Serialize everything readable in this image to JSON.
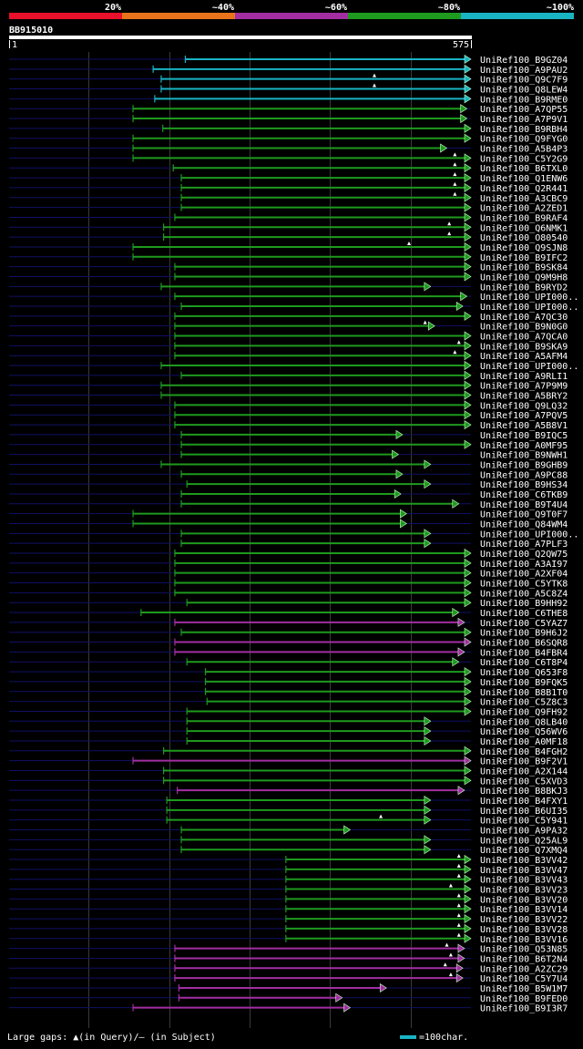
{
  "legend": {
    "labels": [
      "20%",
      "~40%",
      "~60%",
      "~80%",
      "~100%"
    ],
    "colors": [
      "#e8102a",
      "#e8731a",
      "#a22ea2",
      "#1e9a1e",
      "#19b4c4"
    ]
  },
  "query": {
    "id": "BB915010",
    "start": "1",
    "end": "575",
    "length": 575
  },
  "footer": {
    "gaps_text": "Large gaps: ▲(in Query)/– (in Subject)",
    "scale_text": "=100char."
  },
  "chart_data": {
    "type": "alignment-overview",
    "x_range": [
      1,
      575
    ],
    "hits": [
      {
        "label": "UniRef100_B9GZ04",
        "start": 220,
        "end": 575,
        "color": "cyan"
      },
      {
        "label": "UniRef100_A9PAU2",
        "start": 180,
        "end": 575,
        "color": "cyan"
      },
      {
        "label": "UniRef100_Q9C7F9",
        "start": 190,
        "end": 575,
        "color": "cyan",
        "ins": [
          455
        ]
      },
      {
        "label": "UniRef100_Q8LEW4",
        "start": 190,
        "end": 575,
        "color": "cyan",
        "ins": [
          455
        ]
      },
      {
        "label": "UniRef100_B9RME0",
        "start": 182,
        "end": 575,
        "color": "cyan"
      },
      {
        "label": "UniRef100_A7QP55",
        "start": 155,
        "end": 570,
        "color": "green"
      },
      {
        "label": "UniRef100_A7P9V1",
        "start": 155,
        "end": 570,
        "color": "green"
      },
      {
        "label": "UniRef100_B9RBH4",
        "start": 192,
        "end": 575,
        "color": "green"
      },
      {
        "label": "UniRef100_Q9FYG0",
        "start": 155,
        "end": 575,
        "color": "green"
      },
      {
        "label": "UniRef100_A5B4P3",
        "start": 155,
        "end": 545,
        "color": "green"
      },
      {
        "label": "UniRef100_C5Y2G9",
        "start": 155,
        "end": 575,
        "color": "green",
        "ins": [
          555
        ]
      },
      {
        "label": "UniRef100_B6TXL0",
        "start": 205,
        "end": 575,
        "color": "green",
        "ins": [
          555
        ]
      },
      {
        "label": "UniRef100_Q1ENW6",
        "start": 215,
        "end": 575,
        "color": "green",
        "ins": [
          555
        ]
      },
      {
        "label": "UniRef100_Q2R441",
        "start": 215,
        "end": 575,
        "color": "green",
        "ins": [
          555
        ]
      },
      {
        "label": "UniRef100_A3CBC9",
        "start": 215,
        "end": 575,
        "color": "green",
        "ins": [
          555
        ]
      },
      {
        "label": "UniRef100_A2ZED1",
        "start": 215,
        "end": 575,
        "color": "green"
      },
      {
        "label": "UniRef100_B9RAF4",
        "start": 207,
        "end": 575,
        "color": "green"
      },
      {
        "label": "UniRef100_Q6NMK1",
        "start": 193,
        "end": 575,
        "color": "green",
        "ins": [
          548
        ]
      },
      {
        "label": "UniRef100_O80540",
        "start": 193,
        "end": 575,
        "color": "green",
        "ins": [
          548
        ]
      },
      {
        "label": "UniRef100_Q9SJN8",
        "start": 155,
        "end": 575,
        "color": "green",
        "ins": [
          498
        ]
      },
      {
        "label": "UniRef100_B9IFC2",
        "start": 155,
        "end": 575,
        "color": "green"
      },
      {
        "label": "UniRef100_B9SK84",
        "start": 207,
        "end": 575,
        "color": "green"
      },
      {
        "label": "UniRef100_Q9M9H8",
        "start": 207,
        "end": 575,
        "color": "green"
      },
      {
        "label": "UniRef100_B9RYD2",
        "start": 190,
        "end": 525,
        "color": "green"
      },
      {
        "label": "UniRef100_UPI000..",
        "start": 207,
        "end": 570,
        "color": "green"
      },
      {
        "label": "UniRef100_UPI000..",
        "start": 215,
        "end": 565,
        "color": "green"
      },
      {
        "label": "UniRef100_A7QC30",
        "start": 207,
        "end": 575,
        "color": "green"
      },
      {
        "label": "UniRef100_B9N0G0",
        "start": 207,
        "end": 530,
        "color": "green",
        "ins": [
          518
        ]
      },
      {
        "label": "UniRef100_A7QCA0",
        "start": 207,
        "end": 575,
        "color": "green"
      },
      {
        "label": "UniRef100_B9SKA9",
        "start": 207,
        "end": 575,
        "color": "green",
        "ins": [
          560
        ]
      },
      {
        "label": "UniRef100_A5AFM4",
        "start": 207,
        "end": 575,
        "color": "green",
        "ins": [
          555
        ]
      },
      {
        "label": "UniRef100_UPI000..",
        "start": 190,
        "end": 575,
        "color": "green"
      },
      {
        "label": "UniRef100_A9RLI1",
        "start": 215,
        "end": 575,
        "color": "green"
      },
      {
        "label": "UniRef100_A7P9M9",
        "start": 190,
        "end": 575,
        "color": "green"
      },
      {
        "label": "UniRef100_A5BRY2",
        "start": 190,
        "end": 575,
        "color": "green"
      },
      {
        "label": "UniRef100_Q9LQ32",
        "start": 207,
        "end": 575,
        "color": "green"
      },
      {
        "label": "UniRef100_A7PQV5",
        "start": 207,
        "end": 575,
        "color": "green"
      },
      {
        "label": "UniRef100_A5B8V1",
        "start": 207,
        "end": 575,
        "color": "green"
      },
      {
        "label": "UniRef100_B9IQC5",
        "start": 215,
        "end": 490,
        "color": "green"
      },
      {
        "label": "UniRef100_A0MF95",
        "start": 215,
        "end": 575,
        "color": "green"
      },
      {
        "label": "UniRef100_B9NWH1",
        "start": 215,
        "end": 485,
        "color": "green"
      },
      {
        "label": "UniRef100_B9GHB9",
        "start": 190,
        "end": 525,
        "color": "green"
      },
      {
        "label": "UniRef100_A9PC88",
        "start": 215,
        "end": 490,
        "color": "green"
      },
      {
        "label": "UniRef100_B9HS34",
        "start": 222,
        "end": 525,
        "color": "green"
      },
      {
        "label": "UniRef100_C6TKB9",
        "start": 215,
        "end": 488,
        "color": "green"
      },
      {
        "label": "UniRef100_B9T4U4",
        "start": 215,
        "end": 560,
        "color": "green"
      },
      {
        "label": "UniRef100_Q9T0F7",
        "start": 155,
        "end": 495,
        "color": "green"
      },
      {
        "label": "UniRef100_Q84WM4",
        "start": 155,
        "end": 495,
        "color": "green"
      },
      {
        "label": "UniRef100_UPI000..",
        "start": 215,
        "end": 525,
        "color": "green"
      },
      {
        "label": "UniRef100_A7PLF3",
        "start": 215,
        "end": 525,
        "color": "green"
      },
      {
        "label": "UniRef100_Q2QW75",
        "start": 207,
        "end": 575,
        "color": "green"
      },
      {
        "label": "UniRef100_A3AI97",
        "start": 207,
        "end": 575,
        "color": "green"
      },
      {
        "label": "UniRef100_A2XF04",
        "start": 207,
        "end": 575,
        "color": "green"
      },
      {
        "label": "UniRef100_C5YTK8",
        "start": 207,
        "end": 575,
        "color": "green"
      },
      {
        "label": "UniRef100_A5C8Z4",
        "start": 207,
        "end": 575,
        "color": "green"
      },
      {
        "label": "UniRef100_B9HH92",
        "start": 222,
        "end": 575,
        "color": "green"
      },
      {
        "label": "UniRef100_C6THE8",
        "start": 165,
        "end": 560,
        "color": "green"
      },
      {
        "label": "UniRef100_C5YAZ7",
        "start": 207,
        "end": 567,
        "color": "purple"
      },
      {
        "label": "UniRef100_B9H6J2",
        "start": 215,
        "end": 575,
        "color": "green"
      },
      {
        "label": "UniRef100_B6SQR8",
        "start": 207,
        "end": 575,
        "color": "purple"
      },
      {
        "label": "UniRef100_B4FBR4",
        "start": 207,
        "end": 567,
        "color": "purple"
      },
      {
        "label": "UniRef100_C6T8P4",
        "start": 222,
        "end": 560,
        "color": "green"
      },
      {
        "label": "UniRef100_Q653F8",
        "start": 245,
        "end": 575,
        "color": "green"
      },
      {
        "label": "UniRef100_B9FQK5",
        "start": 245,
        "end": 575,
        "color": "green"
      },
      {
        "label": "UniRef100_B8B1T0",
        "start": 245,
        "end": 575,
        "color": "green"
      },
      {
        "label": "UniRef100_C5Z8C3",
        "start": 247,
        "end": 575,
        "color": "green"
      },
      {
        "label": "UniRef100_Q9FH92",
        "start": 222,
        "end": 575,
        "color": "green"
      },
      {
        "label": "UniRef100_Q8LB40",
        "start": 222,
        "end": 525,
        "color": "green"
      },
      {
        "label": "UniRef100_Q56WV6",
        "start": 222,
        "end": 525,
        "color": "green"
      },
      {
        "label": "UniRef100_A0MF18",
        "start": 222,
        "end": 525,
        "color": "green"
      },
      {
        "label": "UniRef100_B4FGH2",
        "start": 193,
        "end": 575,
        "color": "green"
      },
      {
        "label": "UniRef100_B9F2V1",
        "start": 155,
        "end": 575,
        "color": "purple"
      },
      {
        "label": "UniRef100_A2X144",
        "start": 193,
        "end": 575,
        "color": "green"
      },
      {
        "label": "UniRef100_C5XVD3",
        "start": 193,
        "end": 575,
        "color": "green"
      },
      {
        "label": "UniRef100_B8BKJ3",
        "start": 210,
        "end": 567,
        "color": "purple"
      },
      {
        "label": "UniRef100_B4FXY1",
        "start": 197,
        "end": 525,
        "color": "green"
      },
      {
        "label": "UniRef100_B6UI35",
        "start": 197,
        "end": 525,
        "color": "green"
      },
      {
        "label": "UniRef100_C5Y941",
        "start": 197,
        "end": 525,
        "color": "green",
        "ins": [
          463
        ]
      },
      {
        "label": "UniRef100_A9PA32",
        "start": 215,
        "end": 425,
        "color": "green"
      },
      {
        "label": "UniRef100_Q25AL9",
        "start": 215,
        "end": 525,
        "color": "green"
      },
      {
        "label": "UniRef100_Q7XMQ4",
        "start": 215,
        "end": 525,
        "color": "green"
      },
      {
        "label": "UniRef100_B3VV42",
        "start": 345,
        "end": 575,
        "color": "green",
        "ins": [
          560
        ]
      },
      {
        "label": "UniRef100_B3VV47",
        "start": 345,
        "end": 575,
        "color": "green",
        "ins": [
          560
        ]
      },
      {
        "label": "UniRef100_B3VV43",
        "start": 345,
        "end": 575,
        "color": "green",
        "ins": [
          560
        ]
      },
      {
        "label": "UniRef100_B3VV23",
        "start": 345,
        "end": 575,
        "color": "green",
        "ins": [
          550
        ]
      },
      {
        "label": "UniRef100_B3VV20",
        "start": 345,
        "end": 575,
        "color": "green",
        "ins": [
          560
        ]
      },
      {
        "label": "UniRef100_B3VV14",
        "start": 345,
        "end": 575,
        "color": "green",
        "ins": [
          560
        ]
      },
      {
        "label": "UniRef100_B3VV22",
        "start": 345,
        "end": 575,
        "color": "green",
        "ins": [
          560
        ]
      },
      {
        "label": "UniRef100_B3VV28",
        "start": 345,
        "end": 575,
        "color": "green",
        "ins": [
          560
        ]
      },
      {
        "label": "UniRef100_B3VV16",
        "start": 345,
        "end": 575,
        "color": "green",
        "ins": [
          560
        ]
      },
      {
        "label": "UniRef100_Q53N85",
        "start": 207,
        "end": 567,
        "color": "purple",
        "ins": [
          545
        ]
      },
      {
        "label": "UniRef100_B6T2N4",
        "start": 207,
        "end": 567,
        "color": "purple",
        "ins": [
          550
        ]
      },
      {
        "label": "UniRef100_A2ZC29",
        "start": 207,
        "end": 565,
        "color": "purple",
        "ins": [
          543
        ]
      },
      {
        "label": "UniRef100_C5Y7U4",
        "start": 207,
        "end": 565,
        "color": "purple",
        "ins": [
          550
        ]
      },
      {
        "label": "UniRef100_B5W1M7",
        "start": 212,
        "end": 470,
        "color": "purple"
      },
      {
        "label": "UniRef100_B9FED0",
        "start": 212,
        "end": 415,
        "color": "purple"
      },
      {
        "label": "UniRef100_B9I3R7",
        "start": 155,
        "end": 425,
        "color": "purple"
      }
    ]
  }
}
